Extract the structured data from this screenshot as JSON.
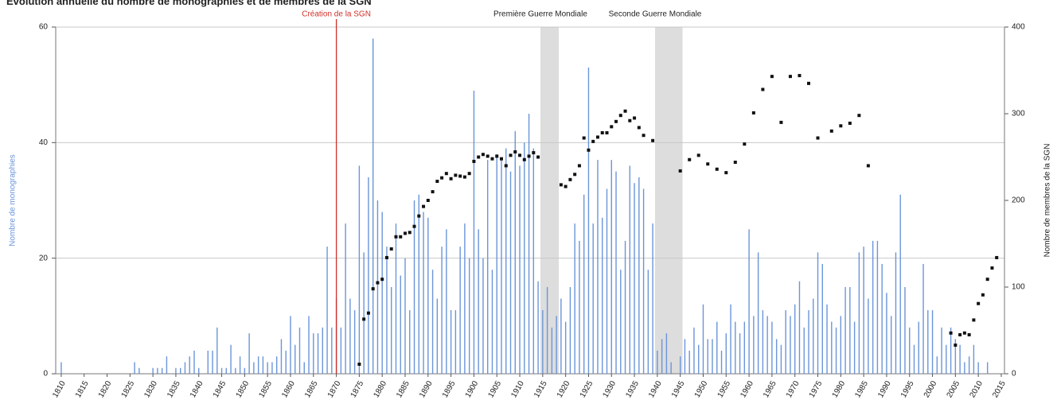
{
  "chart_data": {
    "type": "bar",
    "title": "Évolution annuelle du nombre de monographies et de membres de la SGN",
    "ylabel": "Nombre de monographies",
    "y2label": "Nombre de membres de la SGN",
    "x": [
      1810,
      1811,
      1812,
      1813,
      1814,
      1815,
      1816,
      1817,
      1818,
      1819,
      1820,
      1821,
      1822,
      1823,
      1824,
      1825,
      1826,
      1827,
      1828,
      1829,
      1830,
      1831,
      1832,
      1833,
      1834,
      1835,
      1836,
      1837,
      1838,
      1839,
      1840,
      1841,
      1842,
      1843,
      1844,
      1845,
      1846,
      1847,
      1848,
      1849,
      1850,
      1851,
      1852,
      1853,
      1854,
      1855,
      1856,
      1857,
      1858,
      1859,
      1860,
      1861,
      1862,
      1863,
      1864,
      1865,
      1866,
      1867,
      1868,
      1869,
      1870,
      1871,
      1872,
      1873,
      1874,
      1875,
      1876,
      1877,
      1878,
      1879,
      1880,
      1881,
      1882,
      1883,
      1884,
      1885,
      1886,
      1887,
      1888,
      1889,
      1890,
      1891,
      1892,
      1893,
      1894,
      1895,
      1896,
      1897,
      1898,
      1899,
      1900,
      1901,
      1902,
      1903,
      1904,
      1905,
      1906,
      1907,
      1908,
      1909,
      1910,
      1911,
      1912,
      1913,
      1914,
      1915,
      1916,
      1917,
      1918,
      1919,
      1920,
      1921,
      1922,
      1923,
      1924,
      1925,
      1926,
      1927,
      1928,
      1929,
      1930,
      1931,
      1932,
      1933,
      1934,
      1935,
      1936,
      1937,
      1938,
      1939,
      1940,
      1941,
      1942,
      1943,
      1944,
      1945,
      1946,
      1947,
      1948,
      1949,
      1950,
      1951,
      1952,
      1953,
      1954,
      1955,
      1956,
      1957,
      1958,
      1959,
      1960,
      1961,
      1962,
      1963,
      1964,
      1965,
      1966,
      1967,
      1968,
      1969,
      1970,
      1971,
      1972,
      1973,
      1974,
      1975,
      1976,
      1977,
      1978,
      1979,
      1980,
      1981,
      1982,
      1983,
      1984,
      1985,
      1986,
      1987,
      1988,
      1989,
      1990,
      1991,
      1992,
      1993,
      1994,
      1995,
      1996,
      1997,
      1998,
      1999,
      2000,
      2001,
      2002,
      2003,
      2004,
      2005,
      2006,
      2007,
      2008,
      2009,
      2010,
      2011,
      2012,
      2013,
      2014,
      2015
    ],
    "series": [
      {
        "name": "Nombre de monographies",
        "type": "bar",
        "color": "#6b95d9",
        "values": [
          2,
          0,
          0,
          0,
          0,
          0,
          0,
          0,
          0,
          0,
          0,
          0,
          0,
          0,
          0,
          0,
          2,
          1,
          0,
          0,
          1,
          1,
          1,
          3,
          0,
          1,
          1,
          2,
          3,
          4,
          1,
          0,
          4,
          4,
          8,
          1,
          1,
          5,
          1,
          3,
          1,
          7,
          2,
          3,
          3,
          2,
          2,
          3,
          6,
          4,
          10,
          5,
          8,
          2,
          10,
          7,
          7,
          8,
          22,
          8,
          13,
          8,
          26,
          13,
          11,
          36,
          21,
          34,
          58,
          30,
          28,
          22,
          15,
          26,
          17,
          20,
          11,
          30,
          31,
          28,
          27,
          18,
          13,
          22,
          25,
          11,
          11,
          22,
          26,
          20,
          49,
          25,
          20,
          37,
          18,
          38,
          37,
          39,
          35,
          42,
          36,
          40,
          45,
          39,
          16,
          11,
          15,
          8,
          10,
          13,
          9,
          15,
          26,
          23,
          31,
          53,
          26,
          37,
          27,
          32,
          37,
          35,
          18,
          23,
          36,
          33,
          34,
          32,
          18,
          26,
          4,
          6,
          7,
          2,
          0,
          3,
          6,
          4,
          8,
          5,
          12,
          6,
          6,
          9,
          4,
          7,
          12,
          9,
          7,
          9,
          25,
          10,
          21,
          11,
          10,
          9,
          6,
          5,
          11,
          10,
          12,
          16,
          8,
          11,
          13,
          21,
          19,
          12,
          9,
          8,
          10,
          15,
          15,
          9,
          21,
          22,
          13,
          23,
          23,
          19,
          14,
          10,
          21,
          31,
          15,
          8,
          5,
          9,
          19,
          11,
          11,
          3,
          8,
          5,
          8,
          6,
          5,
          2,
          3,
          5,
          2,
          0,
          2,
          0,
          0,
          0
        ]
      },
      {
        "name": "Nombre de membres de la SGN",
        "type": "scatter",
        "axis": "y2",
        "color": "#111111",
        "values": [
          null,
          null,
          null,
          null,
          null,
          null,
          null,
          null,
          null,
          null,
          null,
          null,
          null,
          null,
          null,
          null,
          null,
          null,
          null,
          null,
          null,
          null,
          null,
          null,
          null,
          null,
          null,
          null,
          null,
          null,
          null,
          null,
          null,
          null,
          null,
          null,
          null,
          null,
          null,
          null,
          null,
          null,
          null,
          null,
          null,
          null,
          null,
          null,
          null,
          null,
          null,
          null,
          null,
          null,
          null,
          null,
          null,
          null,
          null,
          null,
          null,
          null,
          null,
          null,
          null,
          11,
          63,
          70,
          98,
          105,
          109,
          134,
          144,
          158,
          158,
          162,
          163,
          170,
          182,
          193,
          200,
          210,
          222,
          226,
          231,
          225,
          229,
          228,
          227,
          231,
          245,
          250,
          253,
          251,
          248,
          251,
          248,
          240,
          252,
          256,
          252,
          247,
          251,
          255,
          250,
          null,
          null,
          null,
          null,
          218,
          216,
          224,
          230,
          240,
          272,
          258,
          268,
          273,
          278,
          278,
          285,
          291,
          298,
          303,
          292,
          295,
          284,
          275,
          null,
          269,
          null,
          null,
          null,
          null,
          null,
          234,
          null,
          247,
          null,
          252,
          null,
          242,
          null,
          236,
          null,
          232,
          null,
          244,
          null,
          265,
          null,
          301,
          null,
          328,
          null,
          343,
          null,
          290,
          null,
          343,
          null,
          344,
          null,
          335,
          null,
          272,
          null,
          null,
          280,
          null,
          286,
          null,
          289,
          null,
          298,
          null,
          240,
          null,
          null,
          null,
          null,
          null,
          null,
          null,
          null,
          null,
          null,
          null,
          null,
          null,
          null,
          null,
          null,
          null,
          47,
          33,
          45,
          47,
          45,
          62,
          81,
          91,
          109,
          122,
          134,
          null
        ]
      }
    ],
    "xlim": [
      1808.8,
      2015.7
    ],
    "xticks": [
      1810,
      1815,
      1820,
      1825,
      1830,
      1835,
      1840,
      1845,
      1850,
      1855,
      1860,
      1865,
      1870,
      1875,
      1880,
      1885,
      1890,
      1895,
      1900,
      1905,
      1910,
      1915,
      1920,
      1925,
      1930,
      1935,
      1940,
      1945,
      1950,
      1955,
      1960,
      1965,
      1970,
      1975,
      1980,
      1985,
      1990,
      1995,
      2000,
      2005,
      2010,
      2015
    ],
    "ylim": [
      0,
      60
    ],
    "yticks": [
      0,
      20,
      40,
      60
    ],
    "y2lim": [
      0,
      400
    ],
    "y2ticks": [
      0,
      100,
      200,
      300,
      400
    ],
    "grid": true,
    "annotations": [
      {
        "label": "Création de la SGN",
        "x": 1870,
        "color": "#d0302a"
      },
      {
        "label": "Première Guerre Mondiale",
        "range": [
          1914.5,
          1918.5
        ],
        "color": "#dddddd"
      },
      {
        "label": "Seconde Guerre Mondiale",
        "range": [
          1939.5,
          1945.5
        ],
        "color": "#dddddd"
      }
    ]
  }
}
